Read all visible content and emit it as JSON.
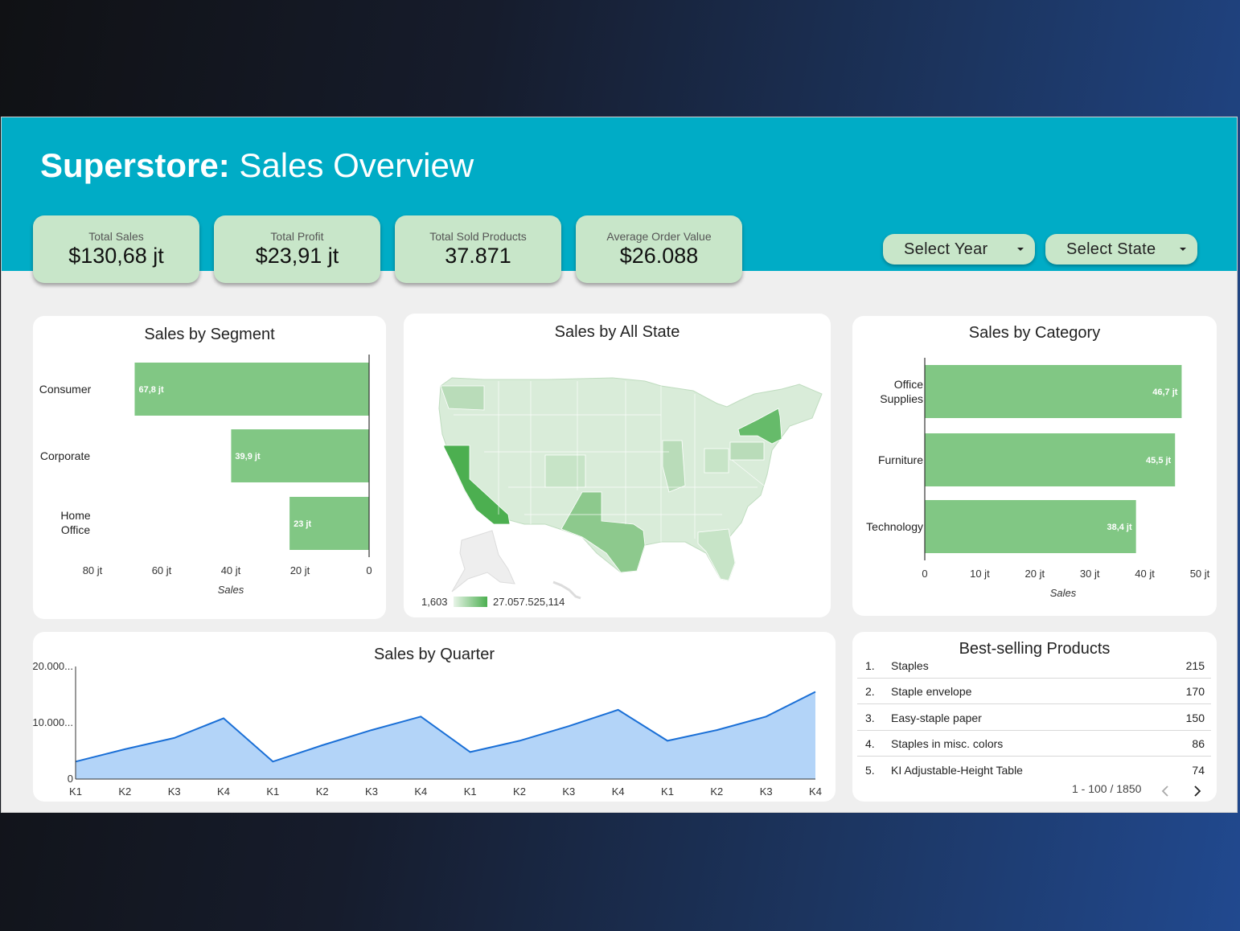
{
  "header": {
    "brand": "Superstore:",
    "title": "Sales Overview"
  },
  "kpis": [
    {
      "label": "Total Sales",
      "value": "$130,68 jt"
    },
    {
      "label": "Total Profit",
      "value": "$23,91 jt"
    },
    {
      "label": "Total Sold Products",
      "value": "37.871"
    },
    {
      "label": "Average Order Value",
      "value": "$26.088"
    }
  ],
  "filters": {
    "year_label": "Select Year",
    "state_label": "Select State"
  },
  "colors": {
    "header": "#00acc6",
    "kpi_bg": "#c8e6c9",
    "bar": "#81c784",
    "area_fill": "#b3d4f8",
    "area_line": "#1a6fd6",
    "map_low": "#d9ecd9",
    "map_high": "#4caf50"
  },
  "segment_chart": {
    "title": "Sales by Segment",
    "chart_data": {
      "type": "bar",
      "orientation": "horizontal-reversed",
      "categories": [
        "Consumer",
        "Corporate",
        "Home Office"
      ],
      "values": [
        67.8,
        39.9,
        23
      ],
      "value_labels": [
        "67,8 jt",
        "39,9 jt",
        "23 jt"
      ],
      "xlim": [
        0,
        80
      ],
      "ticks": [
        80,
        60,
        40,
        20,
        0
      ],
      "tick_labels": [
        "80 jt",
        "60 jt",
        "40 jt",
        "20 jt",
        "0"
      ],
      "xlabel": "Sales"
    }
  },
  "state_map": {
    "title": "Sales by All State",
    "legend_min": "1,603",
    "legend_max": "27.057.525,114"
  },
  "category_chart": {
    "title": "Sales by Category",
    "chart_data": {
      "type": "bar",
      "orientation": "horizontal",
      "categories": [
        "Office Supplies",
        "Furniture",
        "Technology"
      ],
      "values": [
        46.7,
        45.5,
        38.4
      ],
      "value_labels": [
        "46,7 jt",
        "45,5 jt",
        "38,4 jt"
      ],
      "xlim": [
        0,
        50
      ],
      "ticks": [
        0,
        10,
        20,
        30,
        40,
        50
      ],
      "tick_labels": [
        "0",
        "10 jt",
        "20 jt",
        "30 jt",
        "40 jt",
        "50 jt"
      ],
      "xlabel": "Sales"
    }
  },
  "quarter_chart": {
    "title": "Sales by Quarter",
    "chart_data": {
      "type": "area",
      "categories": [
        "K1",
        "K2",
        "K3",
        "K4",
        "K1",
        "K2",
        "K3",
        "K4",
        "K1",
        "K2",
        "K3",
        "K4",
        "K1",
        "K2",
        "K3",
        "K4"
      ],
      "values": [
        3100,
        5300,
        7300,
        10800,
        3100,
        6000,
        8700,
        11100,
        4800,
        6800,
        9400,
        12300,
        6800,
        8700,
        11100,
        15500
      ],
      "ylim": [
        0,
        20000
      ],
      "y_ticks": [
        0,
        10000,
        20000
      ],
      "y_tick_labels": [
        "0",
        "10.000...",
        "20.000..."
      ]
    }
  },
  "best_selling": {
    "title": "Best-selling Products",
    "rows": [
      {
        "rank": "1.",
        "name": "Staples",
        "qty": "215"
      },
      {
        "rank": "2.",
        "name": "Staple envelope",
        "qty": "170"
      },
      {
        "rank": "3.",
        "name": "Easy-staple paper",
        "qty": "150"
      },
      {
        "rank": "4.",
        "name": "Staples in misc. colors",
        "qty": "86"
      },
      {
        "rank": "5.",
        "name": "KI Adjustable-Height Table",
        "qty": "74"
      }
    ],
    "pager": "1 - 100 / 1850"
  }
}
